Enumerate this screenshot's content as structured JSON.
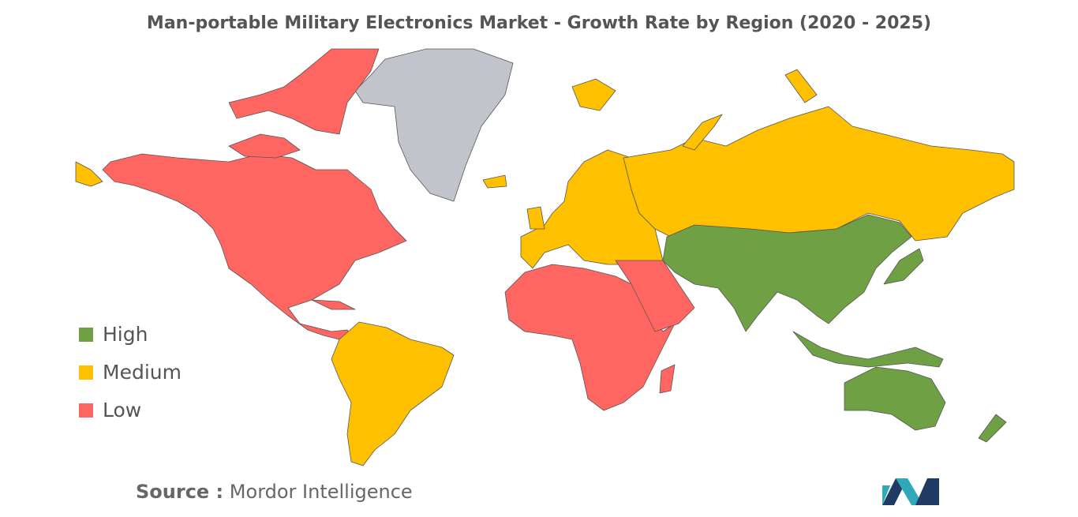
{
  "title": "Man-portable Military Electronics Market - Growth Rate by Region (2020 - 2025)",
  "legend": [
    {
      "label": "High",
      "color": "#70a044"
    },
    {
      "label": "Medium",
      "color": "#ffc000"
    },
    {
      "label": "Low",
      "color": "#ff6661"
    }
  ],
  "no_data_color": "#c1c4cb",
  "source": {
    "label": "Source :",
    "text": "Mordor Intelligence"
  }
}
